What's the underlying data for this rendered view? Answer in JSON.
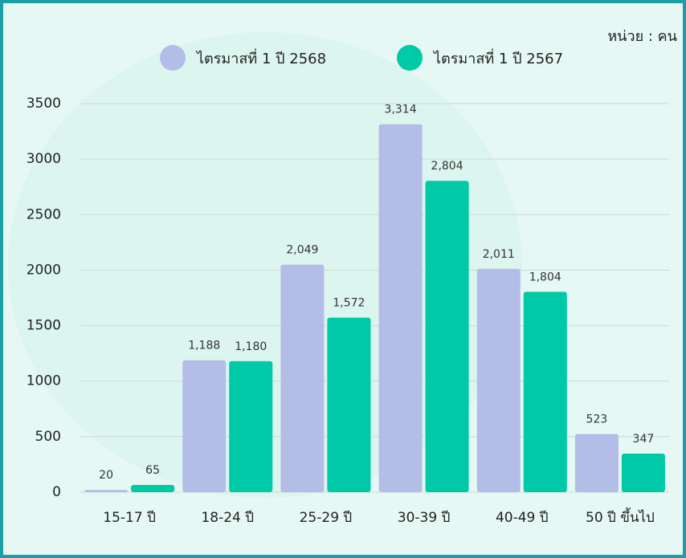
{
  "chart_data": {
    "type": "bar",
    "annotation": "หน่วย : คน",
    "categories": [
      "15-17 ปี",
      "18-24 ปี",
      "25-29 ปี",
      "30-39 ปี",
      "40-49 ปี",
      "50 ปี ขึ้นไป"
    ],
    "series": [
      {
        "name": "ไตรมาสที่ 1 ปี 2568",
        "color": "#b3bde8",
        "values": [
          20,
          1188,
          2049,
          3314,
          2011,
          523
        ],
        "value_labels": [
          "20",
          "1,188",
          "2,049",
          "3,314",
          "2,011",
          "523"
        ]
      },
      {
        "name": "ไตรมาสที่ 1 ปี 2567",
        "color": "#00c9a7",
        "values": [
          65,
          1180,
          1572,
          2804,
          1804,
          347
        ],
        "value_labels": [
          "65",
          "1,180",
          "1,572",
          "2,804",
          "1,804",
          "347"
        ]
      }
    ],
    "ylim": [
      0,
      3500
    ],
    "yticks": [
      0,
      500,
      1000,
      1500,
      2000,
      2500,
      3000,
      3500
    ],
    "grid": true,
    "legend": "top"
  }
}
